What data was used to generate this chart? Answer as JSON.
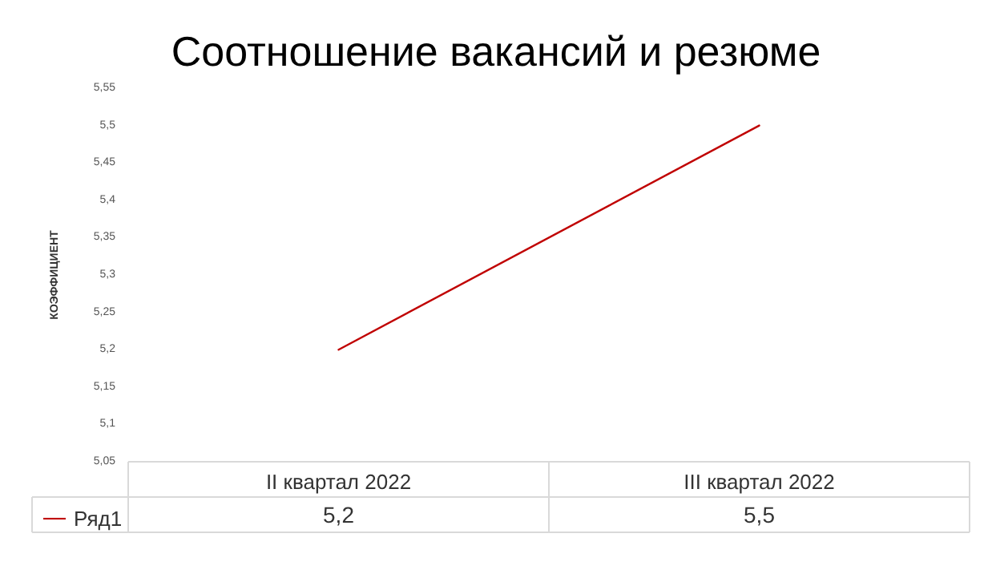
{
  "chart_data": {
    "type": "line",
    "title": "Соотношение вакансий и резюме",
    "ylabel": "КОЭФФИЦИЕНТ",
    "categories": [
      "II квартал 2022",
      "III квартал 2022"
    ],
    "series": [
      {
        "name": "Ряд1",
        "color": "#c00000",
        "values": [
          5.2,
          5.5
        ],
        "value_labels": [
          "5,2",
          "5,5"
        ]
      }
    ],
    "ylim": [
      5.05,
      5.55
    ],
    "yticks": [
      {
        "value": 5.05,
        "label": "5,05"
      },
      {
        "value": 5.1,
        "label": "5,1"
      },
      {
        "value": 5.15,
        "label": "5,15"
      },
      {
        "value": 5.2,
        "label": "5,2"
      },
      {
        "value": 5.25,
        "label": "5,25"
      },
      {
        "value": 5.3,
        "label": "5,3"
      },
      {
        "value": 5.35,
        "label": "5,35"
      },
      {
        "value": 5.4,
        "label": "5,4"
      },
      {
        "value": 5.45,
        "label": "5,45"
      },
      {
        "value": 5.5,
        "label": "5,5"
      },
      {
        "value": 5.55,
        "label": "5,55"
      }
    ],
    "legend": "bottom left",
    "grid": false,
    "marker": "none",
    "line_style": "solid"
  }
}
